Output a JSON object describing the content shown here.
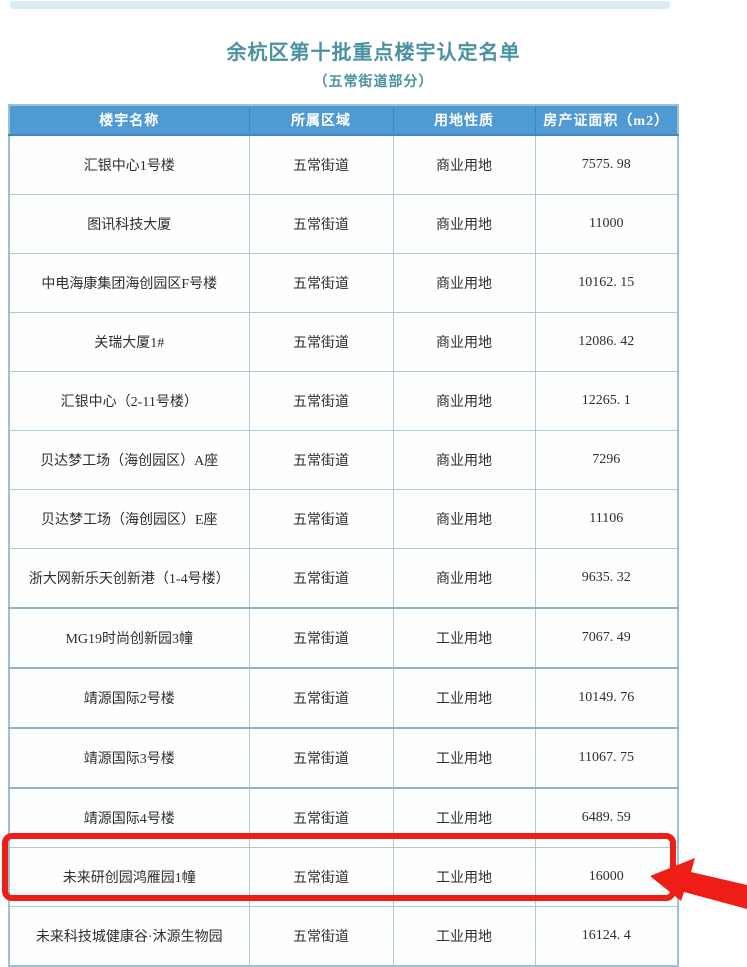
{
  "page": {
    "title": "余杭区第十批重点楼宇认定名单",
    "subtitle": "（五常街道部分）"
  },
  "table": {
    "columns": [
      "楼宇名称",
      "所属区域",
      "用地性质",
      "房产证面积（m2）"
    ],
    "rows": [
      {
        "name": "汇银中心1号楼",
        "district": "五常街道",
        "land_use": "商业用地",
        "area": "7575. 98"
      },
      {
        "name": "图讯科技大厦",
        "district": "五常街道",
        "land_use": "商业用地",
        "area": "11000"
      },
      {
        "name": "中电海康集团海创园区F号楼",
        "district": "五常街道",
        "land_use": "商业用地",
        "area": "10162. 15"
      },
      {
        "name": "关瑞大厦1#",
        "district": "五常街道",
        "land_use": "商业用地",
        "area": "12086. 42"
      },
      {
        "name": "汇银中心（2-11号楼）",
        "district": "五常街道",
        "land_use": "商业用地",
        "area": "12265. 1"
      },
      {
        "name": "贝达梦工场（海创园区）A座",
        "district": "五常街道",
        "land_use": "商业用地",
        "area": "7296"
      },
      {
        "name": "贝达梦工场（海创园区）E座",
        "district": "五常街道",
        "land_use": "商业用地",
        "area": "11106"
      },
      {
        "name": "浙大网新乐天创新港（1-4号楼）",
        "district": "五常街道",
        "land_use": "商业用地",
        "area": "9635. 32"
      },
      {
        "name": "MG19时尚创新园3幢",
        "district": "五常街道",
        "land_use": "工业用地",
        "area": "7067. 49"
      },
      {
        "name": "靖源国际2号楼",
        "district": "五常街道",
        "land_use": "工业用地",
        "area": "10149. 76"
      },
      {
        "name": "靖源国际3号楼",
        "district": "五常街道",
        "land_use": "工业用地",
        "area": "11067. 75"
      },
      {
        "name": "靖源国际4号楼",
        "district": "五常街道",
        "land_use": "工业用地",
        "area": "6489. 59"
      },
      {
        "name": "未来研创园鸿雁园1幢",
        "district": "五常街道",
        "land_use": "工业用地",
        "area": "16000"
      },
      {
        "name": "未来科技城健康谷·沐源生物园",
        "district": "五常街道",
        "land_use": "工业用地",
        "area": "16124. 4"
      }
    ],
    "thick_separator_row_indexes": [
      8,
      9,
      10,
      11
    ]
  },
  "annotation": {
    "highlighted_row_name": "未来研创园鸿雁园1幢",
    "highlighted_row_index": 12,
    "shape": "red-rectangle-with-arrow"
  },
  "colors": {
    "header_bg": "#4f9ad3",
    "header_text": "#ffffff",
    "title_text": "#4a92a0",
    "border": "#aac9dd",
    "border_thick": "#8fb3c8",
    "outer_border": "#9cc0d6",
    "top_bar": "#d7ecf5",
    "highlight_red": "#ee1d16",
    "cell_text": "#2e2e2e"
  }
}
